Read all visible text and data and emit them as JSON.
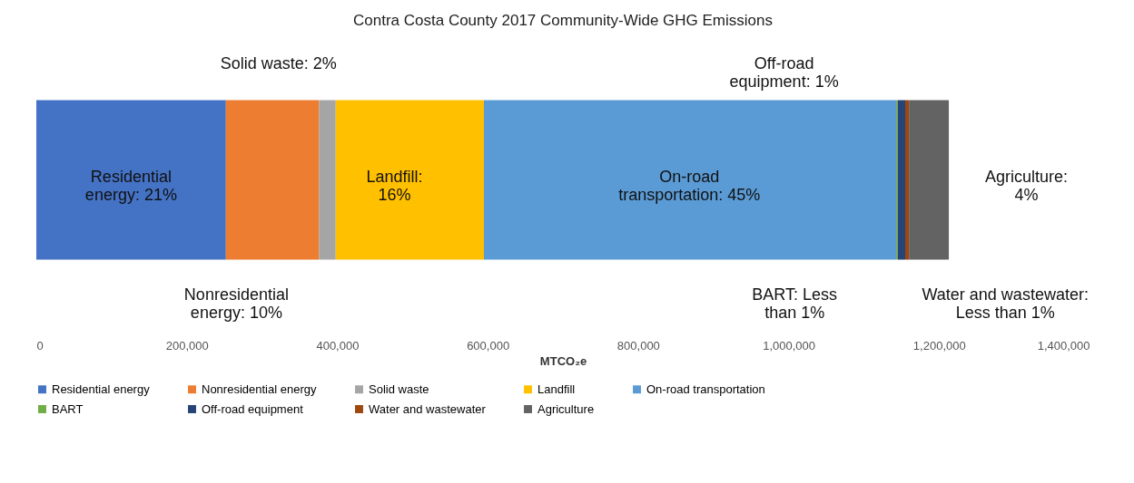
{
  "chart_data": {
    "type": "bar",
    "orientation": "horizontal",
    "stacked": true,
    "title": "Contra Costa County 2017 Community-Wide GHG Emissions",
    "xlabel": "MTCO₂e",
    "categories": [
      null
    ],
    "series": [
      {
        "name": "Residential energy",
        "color": "#4472c4",
        "values": [
          252000
        ]
      },
      {
        "name": "Nonresidential energy",
        "color": "#ed7d31",
        "values": [
          124000
        ]
      },
      {
        "name": "Solid waste",
        "color": "#a5a5a5",
        "values": [
          22000
        ]
      },
      {
        "name": "Landfill",
        "color": "#ffc000",
        "values": [
          197000
        ]
      },
      {
        "name": "On-road transportation",
        "color": "#5b9bd5",
        "values": [
          548000
        ]
      },
      {
        "name": "BART",
        "color": "#70ad47",
        "values": [
          2000
        ]
      },
      {
        "name": "Off-road equipment",
        "color": "#264478",
        "values": [
          10000
        ]
      },
      {
        "name": "Water and wastewater",
        "color": "#9e480e",
        "values": [
          5000
        ]
      },
      {
        "name": "Agriculture",
        "color": "#636363",
        "values": [
          53000
        ]
      }
    ],
    "xlim": [
      0,
      1400000
    ],
    "xticks": [
      0,
      {
        "value": 200000,
        "label": "200,000"
      },
      {
        "value": 400000,
        "label": "400,000"
      },
      {
        "value": 600000,
        "label": "600,000"
      },
      {
        "value": 800000,
        "label": "800,000"
      },
      {
        "value": 1000000,
        "label": "1,000,000"
      },
      {
        "value": 1200000,
        "label": "1,200,000"
      },
      {
        "value": 1400000,
        "label": "1,400,000"
      }
    ],
    "grid": false,
    "legend": "bottom",
    "annotations": [
      "Residential\nenergy: 21%",
      "Nonresidential\nenergy: 10%",
      "Solid waste: 2%",
      "Landfill:\n16%",
      "On-road\ntransportation: 45%",
      "BART: Less\nthan 1%",
      "Off-road\nequipment: 1%",
      "Water and wastewater:\nLess than 1%",
      "Agriculture:\n4%"
    ]
  }
}
